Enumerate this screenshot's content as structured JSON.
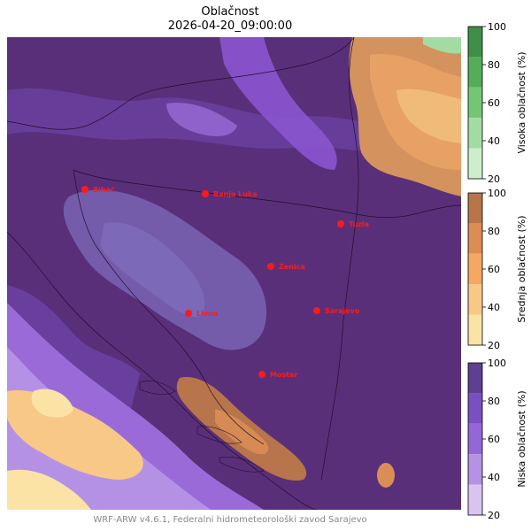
{
  "title": "Oblačnost",
  "subtitle": "2026-04-20_09:00:00",
  "footer": "WRF-ARW v4.6.1, Federalni hidrometeorološki zavod Sarajevo",
  "colorbars": [
    {
      "label": "Visoka oblačnost (%)",
      "ticks": [
        "100",
        "80",
        "60",
        "40",
        "20"
      ],
      "colors": [
        "#3f8f46",
        "#55ad5a",
        "#74c675",
        "#a3dca3",
        "#cdeecb"
      ]
    },
    {
      "label": "Srednja oblačnost (%)",
      "ticks": [
        "100",
        "80",
        "60",
        "40",
        "20"
      ],
      "colors": [
        "#b8744a",
        "#da8d55",
        "#f4a864",
        "#f8c887",
        "#fbe3a5"
      ]
    },
    {
      "label": "Niska oblačnost (%)",
      "ticks": [
        "100",
        "80",
        "60",
        "40",
        "20"
      ],
      "colors": [
        "#5e3f90",
        "#7a4fc0",
        "#9567d6",
        "#b592e4",
        "#d9c4f1"
      ]
    }
  ],
  "cities": [
    {
      "name": "Bihać"
    },
    {
      "name": "Banja Luka"
    },
    {
      "name": "Tuzla"
    },
    {
      "name": "Zenica"
    },
    {
      "name": "Livno"
    },
    {
      "name": "Sarajevo"
    },
    {
      "name": "Mostar"
    }
  ],
  "colors": {
    "background_cloud": "#5a2f7a",
    "city_marker": "#ff1a1a"
  }
}
